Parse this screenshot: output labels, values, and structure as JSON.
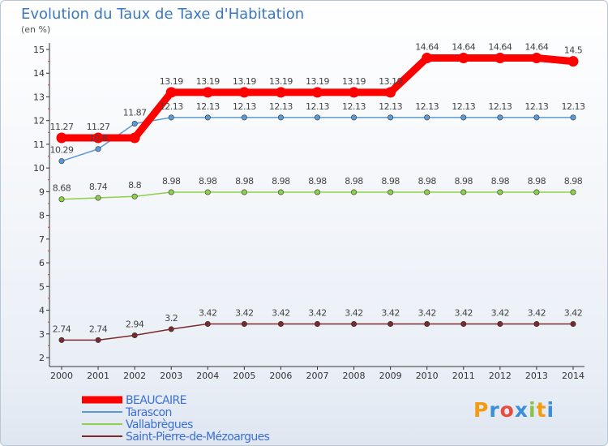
{
  "chart_data": {
    "type": "line",
    "title": "Evolution du Taux de Taxe d'Habitation",
    "ylabel": "(en %)",
    "xlabel": "",
    "ylim": [
      2,
      15
    ],
    "yticks": [
      2,
      3,
      4,
      5,
      6,
      7,
      8,
      9,
      10,
      11,
      12,
      13,
      14,
      15
    ],
    "grid": false,
    "legend_position": "bottom",
    "x": [
      "2000",
      "2001",
      "2002",
      "2003",
      "2004",
      "2005",
      "2006",
      "2007",
      "2008",
      "2009",
      "2010",
      "2011",
      "2012",
      "2013",
      "2014"
    ],
    "series": [
      {
        "name": "BEAUCAIRE",
        "color": "#ff0000",
        "values": [
          11.27,
          11.27,
          11.27,
          13.19,
          13.19,
          13.19,
          13.19,
          13.19,
          13.19,
          13.19,
          14.64,
          14.64,
          14.64,
          14.64,
          14.5
        ],
        "labels": [
          "11.27",
          "11.27",
          "",
          "13.19",
          "13.19",
          "13.19",
          "13.19",
          "13.19",
          "13.19",
          "13.19",
          "14.64",
          "14.64",
          "14.64",
          "14.64",
          "14.5"
        ]
      },
      {
        "name": "Tarascon",
        "color": "#5b9bd5",
        "values": [
          10.29,
          10.8,
          11.87,
          12.13,
          12.13,
          12.13,
          12.13,
          12.13,
          12.13,
          12.13,
          12.13,
          12.13,
          12.13,
          12.13,
          12.13
        ],
        "labels": [
          "10.29",
          "10.8",
          "11.87",
          "12.13",
          "12.13",
          "12.13",
          "12.13",
          "12.13",
          "12.13",
          "12.13",
          "12.13",
          "12.13",
          "12.13",
          "12.13",
          "12.13"
        ]
      },
      {
        "name": "Vallabrègues",
        "color": "#8ed04b",
        "values": [
          8.68,
          8.74,
          8.8,
          8.98,
          8.98,
          8.98,
          8.98,
          8.98,
          8.98,
          8.98,
          8.98,
          8.98,
          8.98,
          8.98,
          8.98
        ],
        "labels": [
          "8.68",
          "8.74",
          "8.8",
          "8.98",
          "8.98",
          "8.98",
          "8.98",
          "8.98",
          "8.98",
          "8.98",
          "8.98",
          "8.98",
          "8.98",
          "8.98",
          "8.98"
        ]
      },
      {
        "name": "Saint-Pierre-de-Mézoargues",
        "color": "#7a2a2a",
        "values": [
          2.74,
          2.74,
          2.94,
          3.2,
          3.42,
          3.42,
          3.42,
          3.42,
          3.42,
          3.42,
          3.42,
          3.42,
          3.42,
          3.42,
          3.42
        ],
        "labels": [
          "2.74",
          "2.74",
          "2.94",
          "3.2",
          "3.42",
          "3.42",
          "3.42",
          "3.42",
          "3.42",
          "3.42",
          "3.42",
          "3.42",
          "3.42",
          "3.42",
          "3.42"
        ]
      }
    ]
  },
  "logo": {
    "letters": [
      "P",
      "r",
      "o",
      "x",
      "i",
      "t",
      "i"
    ],
    "colors": [
      "#f39c12",
      "#3b8ed8",
      "#e74c3c",
      "#3b8ed8",
      "#8bc34a",
      "#f39c12",
      "#3b8ed8"
    ]
  }
}
